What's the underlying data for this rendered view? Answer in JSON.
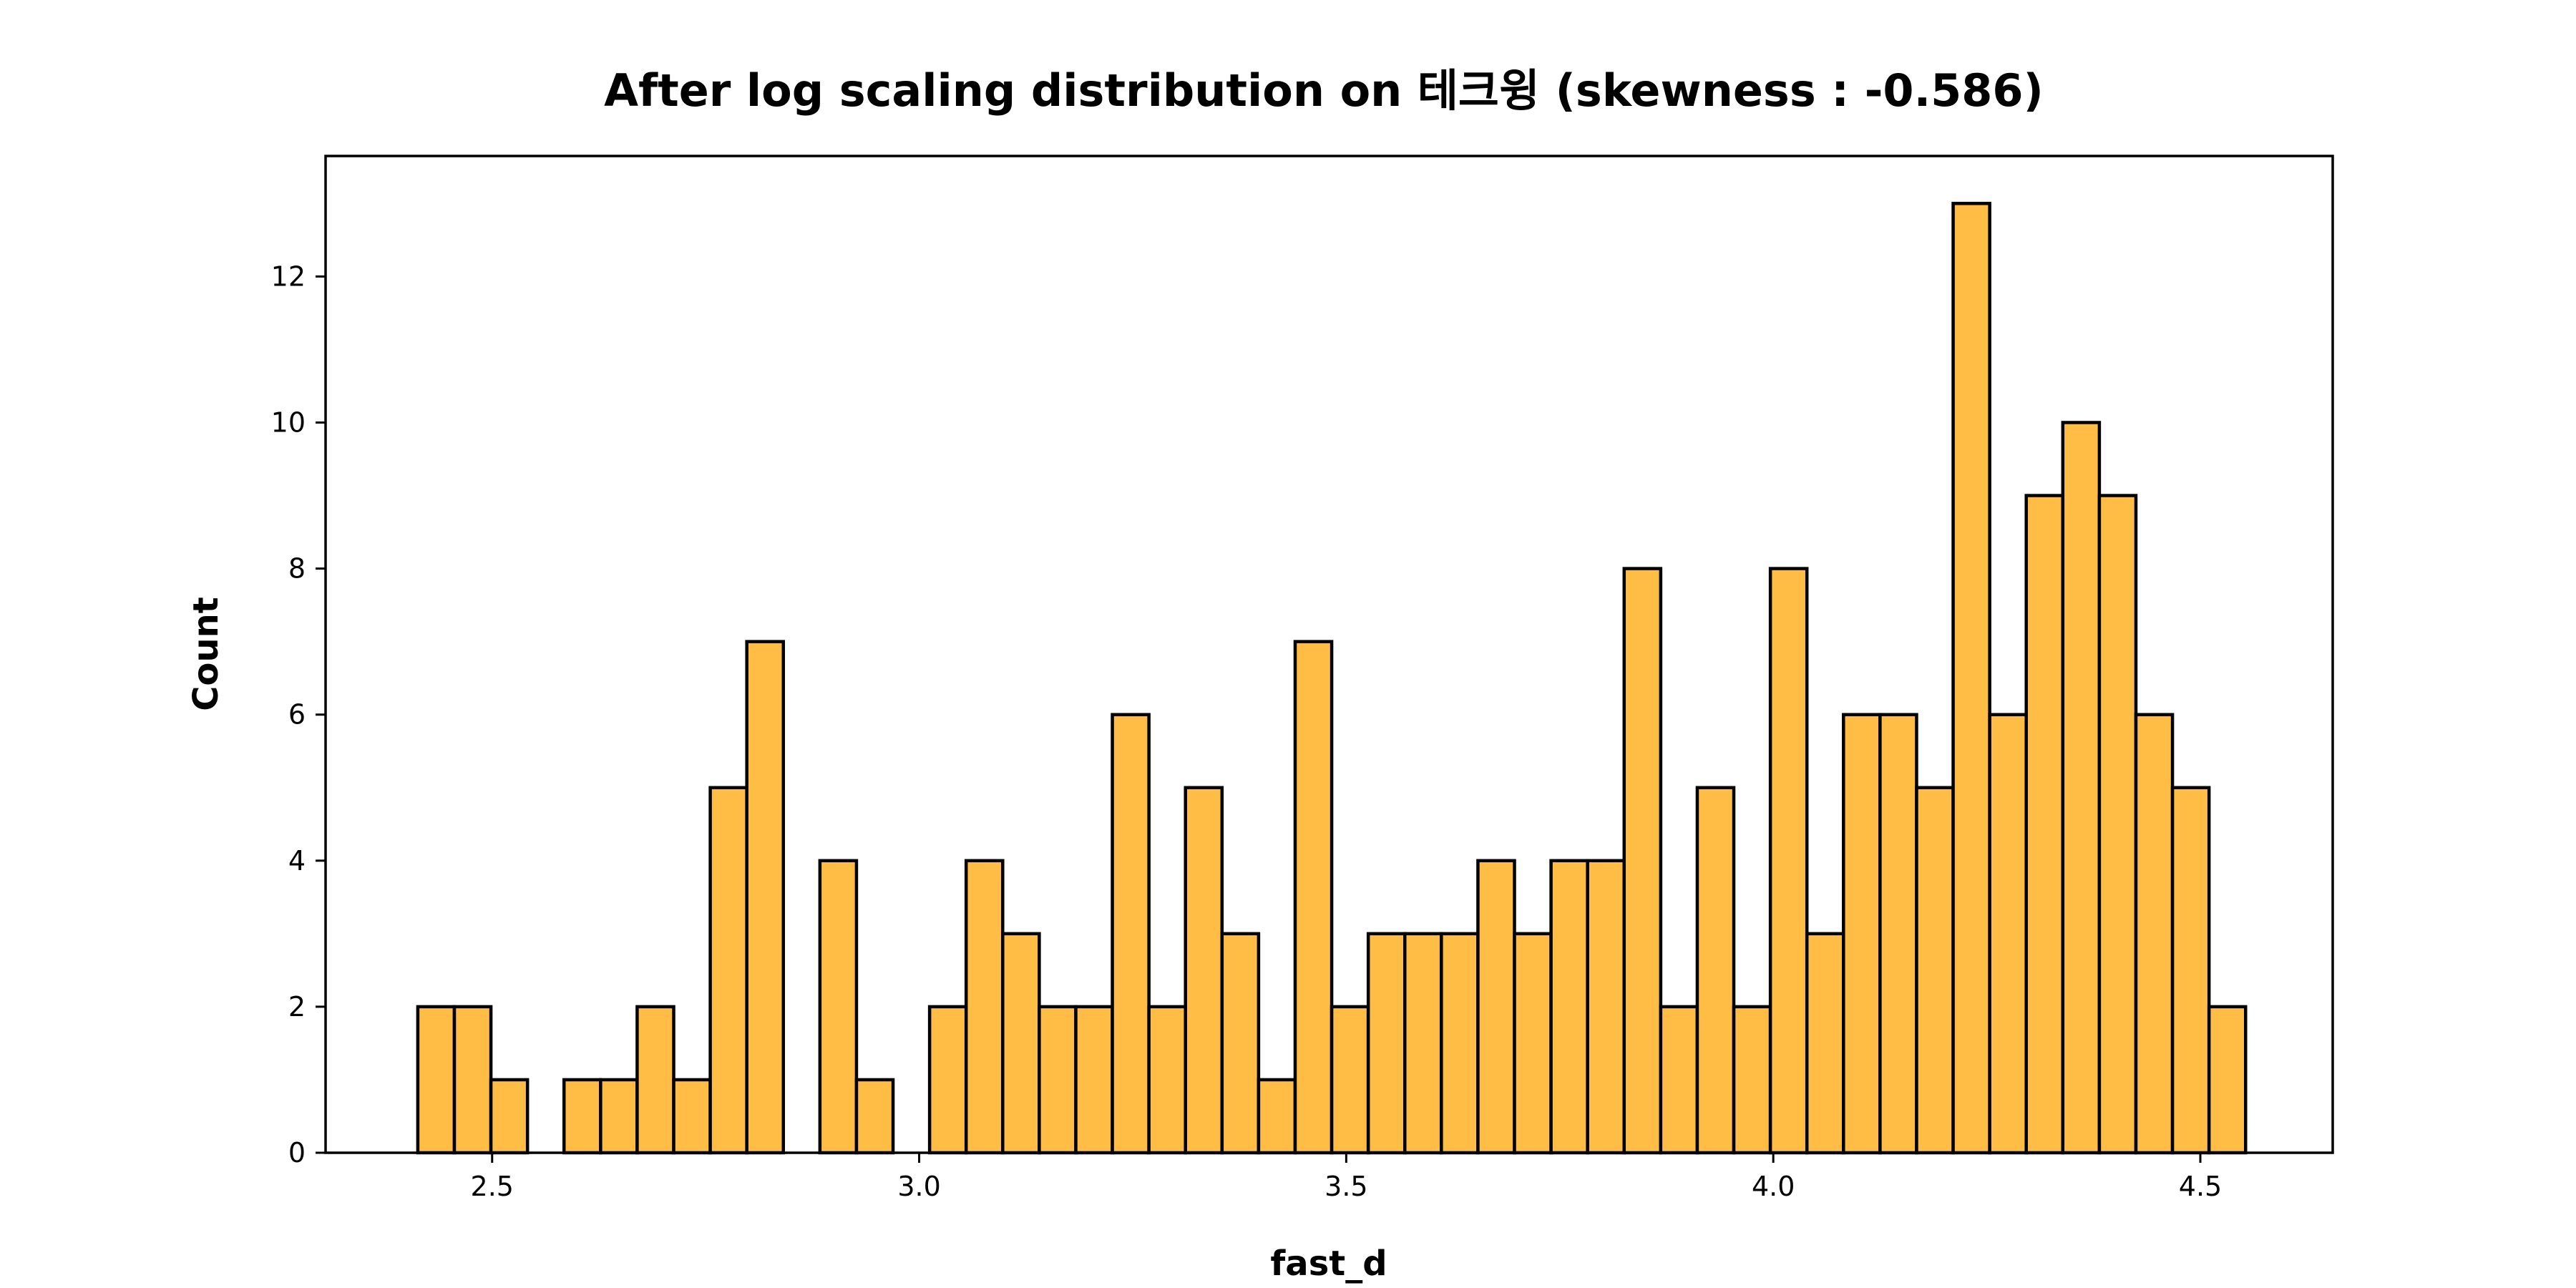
{
  "chart_data": {
    "type": "bar",
    "title": "After log scaling distribution on 테크윙 (skewness : -0.586)",
    "xlabel": "fast_d",
    "ylabel": "Count",
    "xlim": [
      2.305,
      4.655
    ],
    "ylim": [
      0,
      13.65
    ],
    "xticks": [
      "2.5",
      "3.0",
      "3.5",
      "4.0",
      "4.5"
    ],
    "yticks": [
      "0",
      "2",
      "4",
      "6",
      "8",
      "10",
      "12"
    ],
    "bin_start": 2.413,
    "bin_width": 0.0428,
    "values": [
      2,
      2,
      1,
      0,
      1,
      1,
      2,
      1,
      5,
      7,
      0,
      4,
      1,
      0,
      2,
      4,
      3,
      2,
      2,
      6,
      2,
      5,
      3,
      1,
      7,
      2,
      3,
      3,
      3,
      4,
      3,
      4,
      4,
      8,
      2,
      5,
      2,
      8,
      3,
      6,
      6,
      5,
      13,
      6,
      9,
      10,
      9,
      6,
      5,
      2
    ],
    "bar_color": "#FFBD45",
    "edge_color": "#000000",
    "grid": false,
    "legend": "none"
  }
}
